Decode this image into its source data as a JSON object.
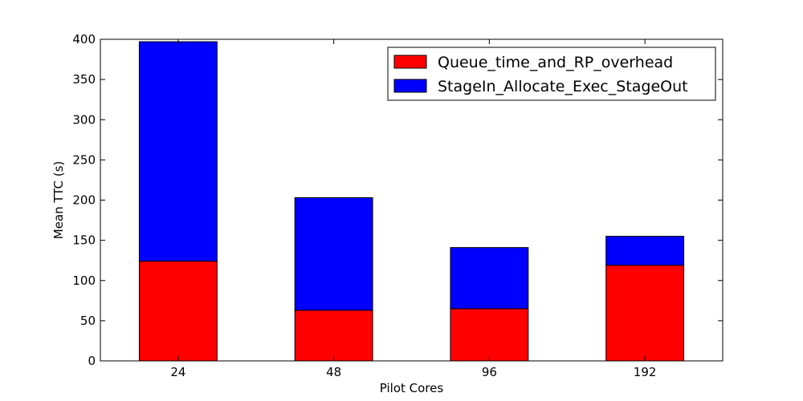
{
  "chart_data": {
    "type": "bar",
    "stacked": true,
    "categories": [
      "24",
      "48",
      "96",
      "192"
    ],
    "series": [
      {
        "name": "Queue_time_and_RP_overhead",
        "color": "#ff0000",
        "values": [
          124,
          63,
          65,
          119
        ]
      },
      {
        "name": "StageIn_Allocate_Exec_StageOut",
        "color": "#0000ff",
        "values": [
          273,
          140,
          76,
          36
        ]
      }
    ],
    "xlabel": "Pilot Cores",
    "ylabel": "Mean TTC (s)",
    "ylim": [
      0,
      400
    ],
    "yticks": [
      0,
      50,
      100,
      150,
      200,
      250,
      300,
      350,
      400
    ],
    "grid": false,
    "legend_position": "top-right"
  }
}
